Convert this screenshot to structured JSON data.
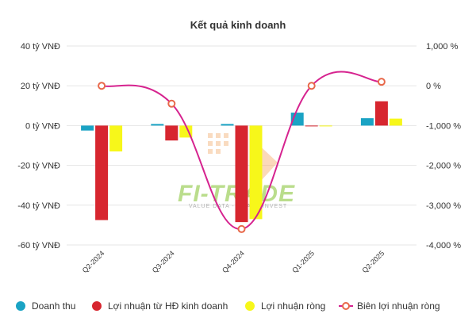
{
  "chart_data": {
    "type": "bar",
    "title": "Kết quả kinh doanh",
    "categories": [
      "Q2-2024",
      "Q3-2024",
      "Q4-2024",
      "Q1-2025",
      "Q2-2025"
    ],
    "y_left": {
      "ylim": [
        -60,
        40
      ],
      "ticks": [
        40,
        20,
        0,
        -20,
        -40,
        -60
      ],
      "tick_labels": [
        "40 tỷ VNĐ",
        "20 tỷ VNĐ",
        "0 tỷ VNĐ",
        "-20 tỷ VNĐ",
        "-40 tỷ VNĐ",
        "-60 tỷ VNĐ"
      ]
    },
    "y_right": {
      "ylim": [
        -4000,
        1000
      ],
      "ticks": [
        1000,
        0,
        -1000,
        -2000,
        -3000,
        -4000
      ],
      "tick_labels": [
        "1,000 %",
        "0 %",
        "-1,000 %",
        "-2,000 %",
        "-3,000 %",
        "-4,000 %"
      ]
    },
    "grid": true,
    "legend_position": "bottom",
    "series": [
      {
        "name": "Doanh thu",
        "type": "bar",
        "axis": "left",
        "color": "#1aa3c4",
        "values": [
          -2.5,
          0.8,
          0.8,
          6.5,
          3.7
        ]
      },
      {
        "name": "Lợi nhuận từ HĐ kinh doanh",
        "type": "bar",
        "axis": "left",
        "color": "#d7262f",
        "values": [
          -47.5,
          -7.5,
          -48.5,
          -0.3,
          12.2
        ]
      },
      {
        "name": "Lợi nhuận ròng",
        "type": "bar",
        "axis": "left",
        "color": "#f7f71a",
        "values": [
          -13.0,
          -6.0,
          -47.0,
          -0.3,
          3.5
        ]
      },
      {
        "name": "Biên lợi nhuận ròng",
        "type": "line",
        "axis": "right",
        "color": "#d6238f",
        "values": [
          0,
          -450,
          -3600,
          0,
          100
        ]
      }
    ]
  },
  "watermark": {
    "logo_text": "FI-TRADE",
    "tagline": "VALUE DATA - SMART INVEST"
  }
}
